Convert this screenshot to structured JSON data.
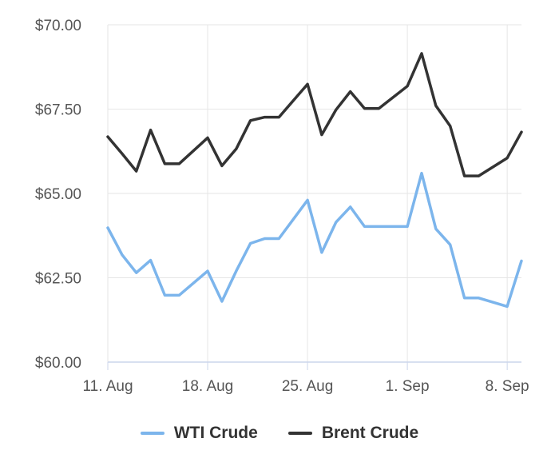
{
  "chart_data": {
    "type": "line",
    "y_ticks": [
      "$60.00",
      "$62.50",
      "$65.00",
      "$67.50",
      "$70.00"
    ],
    "ylim": [
      60,
      70
    ],
    "x_ticks": [
      {
        "label": "11. Aug",
        "day": 0
      },
      {
        "label": "18. Aug",
        "day": 7
      },
      {
        "label": "25. Aug",
        "day": 14
      },
      {
        "label": "1. Sep",
        "day": 21
      },
      {
        "label": "8. Sep",
        "day": 28
      }
    ],
    "grid": true,
    "legend_placement": "bottom",
    "series": [
      {
        "name": "WTI Crude",
        "color": "#7cb5ec",
        "points": [
          [
            0,
            63.98
          ],
          [
            1,
            63.18
          ],
          [
            2,
            62.65
          ],
          [
            3,
            63.02
          ],
          [
            4,
            61.98
          ],
          [
            5,
            61.98
          ],
          [
            7,
            62.7
          ],
          [
            8,
            61.8
          ],
          [
            9,
            62.7
          ],
          [
            10,
            63.52
          ],
          [
            11,
            63.66
          ],
          [
            12,
            63.66
          ],
          [
            14,
            64.8
          ],
          [
            15,
            63.25
          ],
          [
            16,
            64.15
          ],
          [
            17,
            64.6
          ],
          [
            18,
            64.02
          ],
          [
            19,
            64.02
          ],
          [
            21,
            64.02
          ],
          [
            22,
            65.6
          ],
          [
            23,
            63.95
          ],
          [
            24,
            63.48
          ],
          [
            25,
            61.9
          ],
          [
            26,
            61.9
          ],
          [
            28,
            61.65
          ],
          [
            29,
            63.0
          ]
        ]
      },
      {
        "name": "Brent Crude",
        "color": "#333333",
        "points": [
          [
            0,
            66.68
          ],
          [
            1,
            66.18
          ],
          [
            2,
            65.66
          ],
          [
            3,
            66.88
          ],
          [
            4,
            65.88
          ],
          [
            5,
            65.88
          ],
          [
            7,
            66.65
          ],
          [
            8,
            65.82
          ],
          [
            9,
            66.32
          ],
          [
            10,
            67.16
          ],
          [
            11,
            67.26
          ],
          [
            12,
            67.26
          ],
          [
            14,
            68.24
          ],
          [
            15,
            66.74
          ],
          [
            16,
            67.48
          ],
          [
            17,
            68.02
          ],
          [
            18,
            67.52
          ],
          [
            19,
            67.52
          ],
          [
            21,
            68.18
          ],
          [
            22,
            69.15
          ],
          [
            23,
            67.6
          ],
          [
            24,
            67.0
          ],
          [
            25,
            65.52
          ],
          [
            26,
            65.52
          ],
          [
            28,
            66.05
          ],
          [
            29,
            66.82
          ]
        ]
      }
    ]
  }
}
